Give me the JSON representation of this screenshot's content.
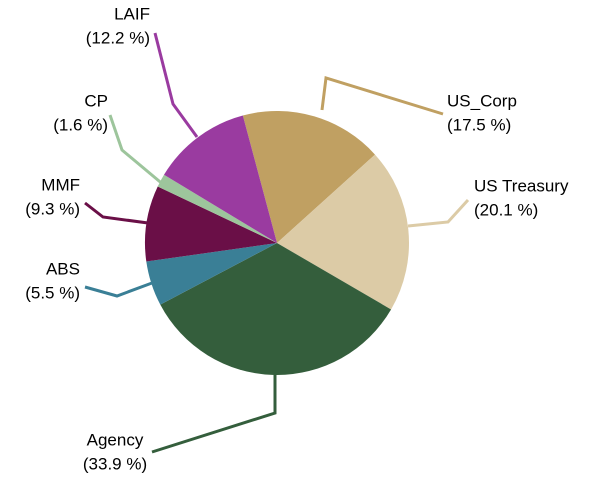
{
  "chart_data": {
    "type": "pie",
    "categories": [
      "US_Corp",
      "US Treasury",
      "Agency",
      "ABS",
      "MMF",
      "CP",
      "LAIF"
    ],
    "values": [
      17.5,
      20.1,
      33.9,
      5.5,
      9.3,
      1.6,
      12.2
    ],
    "value_labels": [
      "(17.5 %)",
      "(20.1 %)",
      "(33.9 %)",
      "(5.5 %)",
      "(9.3 %)",
      "(1.6 %)",
      "(12.2 %)"
    ],
    "colors": [
      "#c0a062",
      "#dccba6",
      "#345e3c",
      "#3a7f96",
      "#6a0f47",
      "#9dc59c",
      "#9a3ba0"
    ]
  }
}
